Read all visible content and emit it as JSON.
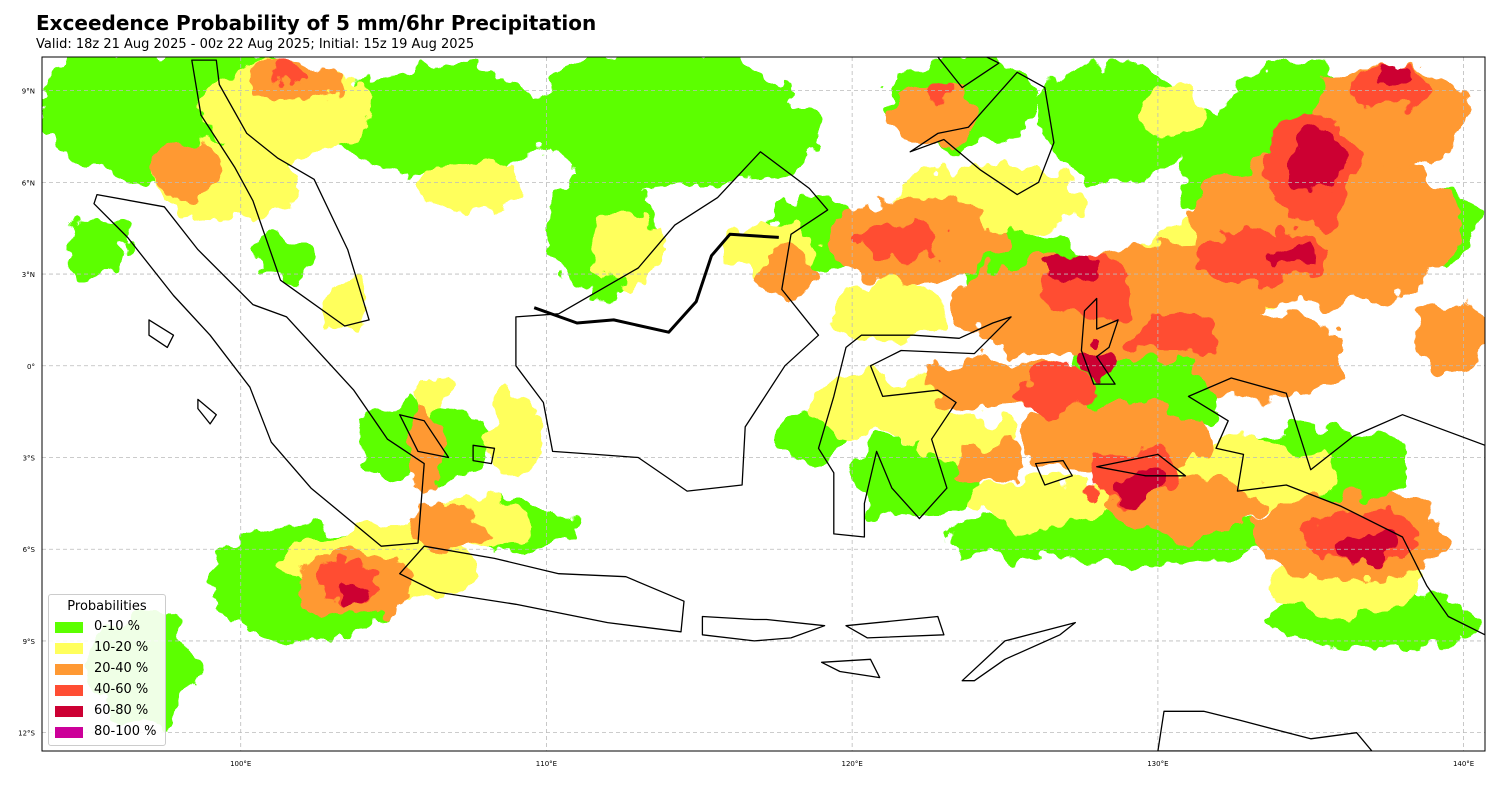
{
  "title": "Exceedence Probability of 5 mm/6hr Precipitation",
  "subtitle": "Valid: 18z 21 Aug 2025 - 00z 22 Aug 2025; Initial: 15z 19 Aug 2025",
  "map": {
    "lon_range": [
      93.5,
      140.7
    ],
    "lat_range": [
      -12.6,
      10.1
    ],
    "lon_ticks": [
      {
        "value": 100,
        "label": "100°E"
      },
      {
        "value": 110,
        "label": "110°E"
      },
      {
        "value": 120,
        "label": "120°E"
      },
      {
        "value": 130,
        "label": "130°E"
      },
      {
        "value": 140,
        "label": "140°E"
      }
    ],
    "lat_ticks": [
      {
        "value": 9,
        "label": "9°N"
      },
      {
        "value": 6,
        "label": "6°N"
      },
      {
        "value": 3,
        "label": "3°N"
      },
      {
        "value": 0,
        "label": "0°"
      },
      {
        "value": -3,
        "label": "3°S"
      },
      {
        "value": -6,
        "label": "6°S"
      },
      {
        "value": -9,
        "label": "9°S"
      },
      {
        "value": -12,
        "label": "12°S"
      }
    ],
    "gridlines": true
  },
  "legend": {
    "title": "Probabilities",
    "placement": "lower-left",
    "items": [
      {
        "label": "0-10 %",
        "color": "#5cff00"
      },
      {
        "label": "10-20 %",
        "color": "#ffff5c"
      },
      {
        "label": "20-40 %",
        "color": "#ff9933"
      },
      {
        "label": "40-60 %",
        "color": "#ff4d33"
      },
      {
        "label": "60-80 %",
        "color": "#cc0033"
      },
      {
        "label": "80-100 %",
        "color": "#cc0099"
      }
    ]
  }
}
